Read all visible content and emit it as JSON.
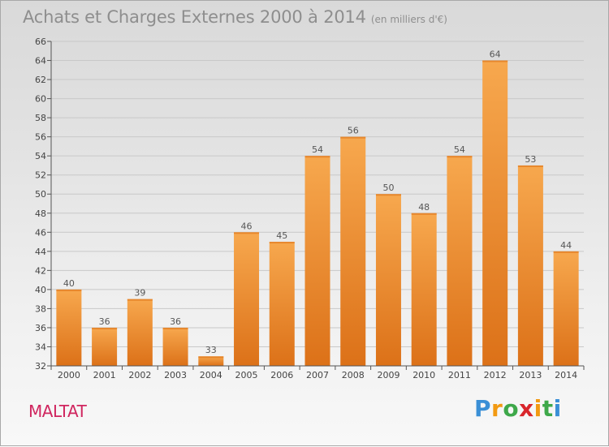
{
  "title": "Achats et Charges Externes 2000 à 2014",
  "subtitle": "(en milliers d'€)",
  "location": "MALTAT",
  "logo": {
    "letters": [
      "P",
      "r",
      "o",
      "x",
      "i",
      "t",
      "i"
    ],
    "colors": [
      "#3a8fd6",
      "#f29a12",
      "#3ea84a",
      "#d9262c",
      "#f29a12",
      "#3ea84a",
      "#3a8fd6"
    ]
  },
  "colors": {
    "bar_light": "#f7a84e",
    "bar_dark": "#dc7118",
    "grid": "#c8c8c8",
    "axis": "#555555"
  },
  "chart_data": {
    "type": "bar",
    "categories": [
      "2000",
      "2001",
      "2002",
      "2003",
      "2004",
      "2005",
      "2006",
      "2007",
      "2008",
      "2009",
      "2010",
      "2011",
      "2012",
      "2013",
      "2014"
    ],
    "values": [
      40,
      36,
      39,
      36,
      33,
      46,
      45,
      54,
      56,
      50,
      48,
      54,
      64,
      53,
      44
    ],
    "ylim": [
      32,
      66
    ],
    "yticks": [
      32,
      34,
      36,
      38,
      40,
      42,
      44,
      46,
      48,
      50,
      52,
      54,
      56,
      58,
      60,
      62,
      64,
      66
    ],
    "grid": true,
    "xlabel": "",
    "ylabel": ""
  }
}
